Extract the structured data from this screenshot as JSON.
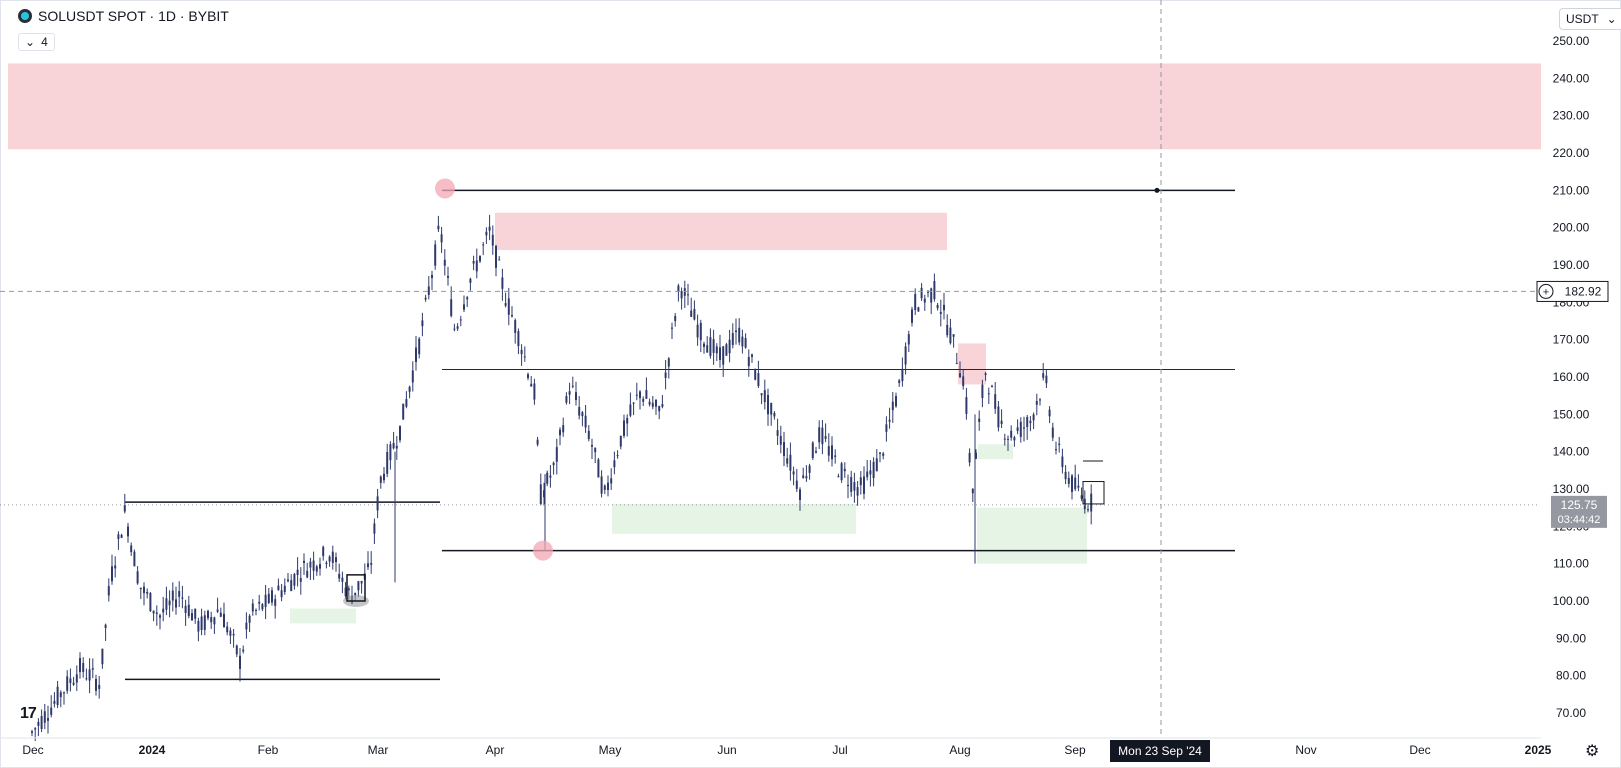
{
  "header": {
    "symbol": "SOLUSDT SPOT · 1D · BYBIT",
    "indicator_count": "4",
    "currency": "USDT"
  },
  "colors": {
    "candle": "#2f3a6b",
    "supply_zone": "#f8d4d8",
    "demand_zone": "#e6f4e6",
    "level_line": "#131722",
    "mid_line": "#1c1f6b",
    "crosshair": "#9598a1"
  },
  "price_axis": [
    "250.00",
    "240.00",
    "230.00",
    "220.00",
    "210.00",
    "200.00",
    "190.00",
    "180.00",
    "170.00",
    "160.00",
    "150.00",
    "140.00",
    "130.00",
    "120.00",
    "110.00",
    "100.00",
    "90.00",
    "80.00",
    "70.00"
  ],
  "time_axis": [
    "Dec",
    "2024",
    "Feb",
    "Mar",
    "Apr",
    "May",
    "Jun",
    "Jul",
    "Aug",
    "Sep",
    "Nov",
    "Dec",
    "2025"
  ],
  "crosshair": {
    "price": "182.92",
    "date": "Mon 23 Sep '24"
  },
  "last_price": {
    "price": "125.75",
    "countdown": "03:44:42"
  },
  "chart_data": {
    "type": "candlestick",
    "title": "SOLUSDT SPOT · 1D · BYBIT",
    "ylim": [
      65,
      256
    ],
    "x_range": [
      "2023-12-01",
      "2025-01-01"
    ],
    "series": [
      {
        "values": [
          [
            45,
            70
          ],
          [
            55,
            65
          ],
          [
            100,
            125
          ],
          [
            95,
            115
          ],
          [
            100,
            108
          ],
          [
            100,
            96
          ],
          [
            80,
            85
          ],
          [
            95,
            100
          ],
          [
            108,
            115
          ],
          [
            95,
            105
          ],
          [
            98,
            100
          ],
          [
            140,
            150
          ],
          [
            180,
            195
          ],
          [
            170,
            210
          ],
          [
            180,
            195
          ],
          [
            200,
            190
          ],
          [
            170,
            175
          ],
          [
            150,
            120
          ],
          [
            140,
            130
          ],
          [
            135,
            145
          ],
          [
            130,
            125
          ],
          [
            150,
            175
          ],
          [
            180,
            185
          ],
          [
            170,
            175
          ],
          [
            160,
            165
          ],
          [
            155,
            150
          ],
          [
            145,
            135
          ],
          [
            130,
            140
          ],
          [
            140,
            155
          ],
          [
            170,
            185
          ],
          [
            190,
            170
          ],
          [
            165,
            160
          ],
          [
            110,
            150
          ],
          [
            135,
            145
          ],
          [
            140,
            160
          ],
          [
            150,
            145
          ],
          [
            125,
            135
          ],
          [
            130,
            126
          ]
        ]
      }
    ],
    "horizontal_lines": [
      210,
      162,
      113.5,
      126.5,
      79
    ],
    "supply_zones": [
      [
        221,
        244
      ],
      [
        194,
        204
      ],
      [
        158,
        169
      ]
    ],
    "demand_zones": [
      [
        118,
        126
      ],
      [
        110,
        125
      ],
      [
        138,
        142
      ],
      [
        94,
        98
      ]
    ],
    "highlight_points": [
      [
        210.5
      ],
      [
        113.5
      ]
    ]
  }
}
